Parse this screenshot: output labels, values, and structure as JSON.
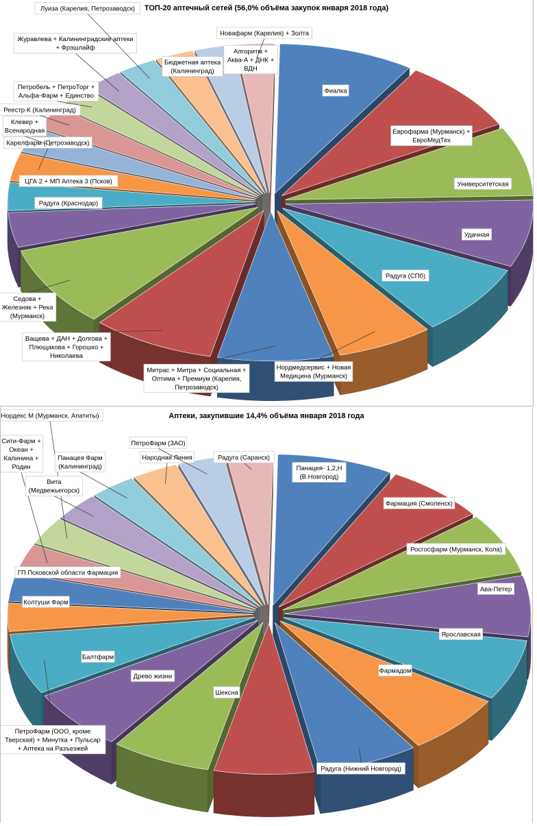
{
  "chart_data": [
    {
      "type": "pie",
      "title": "ТОП-20 аптечный сетей (56,0% объёма закупок января  2018 года)",
      "legend": "none",
      "slices": [
        {
          "label": "Фиалка",
          "value": 7.0,
          "color": "#4f81bd"
        },
        {
          "label": "Еврофарма (Мурманск) + ЕвроМедТех",
          "value": 6.3,
          "color": "#c0504d"
        },
        {
          "label": "Университетская",
          "value": 6.0,
          "color": "#9bbb59"
        },
        {
          "label": "Удачная",
          "value": 5.8,
          "color": "#8064a2"
        },
        {
          "label": "Радуга (СПб)",
          "value": 6.2,
          "color": "#4bacc6"
        },
        {
          "label": "Нордмедсервис + Новая Медицина (Мурманск)",
          "value": 5.0,
          "color": "#f79646"
        },
        {
          "label": "Митрас + Митра + Социальная + Оптима + Премиум (Карелия, Петрозаводск)",
          "value": 6.0,
          "color": "#4f81bd"
        },
        {
          "label": "Ващева + ДАН + Долгова + Плющакова + Горошко + Николаева",
          "value": 6.4,
          "color": "#c0504d"
        },
        {
          "label": "Седова + Железняк + Река (Мурманск)",
          "value": 7.0,
          "color": "#9bbb59"
        },
        {
          "label": "Радуга (Краснодар)",
          "value": 3.0,
          "color": "#8064a2"
        },
        {
          "label": "ЦГА 2 + МП Аптека 3 (Псков)",
          "value": 2.4,
          "color": "#4bacc6"
        },
        {
          "label": "Карелфарм (Петрозаводск)",
          "value": 2.4,
          "color": "#f79646"
        },
        {
          "label": "Клевер + Всенародная",
          "value": 2.1,
          "color": "#95b3d7"
        },
        {
          "label": "Реестр-К (Калининград)",
          "value": 2.0,
          "color": "#d99694"
        },
        {
          "label": "Петробель + ПетроТорг + Альфа-Фарм + Единство",
          "value": 2.0,
          "color": "#c3d69b"
        },
        {
          "label": "Журавлева + Калининградские аптеки + Фрэшлайф",
          "value": 2.0,
          "color": "#b3a2c7"
        },
        {
          "label": "Луиза (Карелия, Петрозаводск)",
          "value": 2.0,
          "color": "#92cddc"
        },
        {
          "label": "Бюджетная аптека (Калининград)",
          "value": 2.0,
          "color": "#fac090"
        },
        {
          "label": "Алгоритм + Аква-А + ДНК + ВДН",
          "value": 2.0,
          "color": "#b9cde5"
        },
        {
          "label": "Новафарм (Карелия) + Золта",
          "value": 2.0,
          "color": "#e6b9b8"
        }
      ]
    },
    {
      "type": "pie",
      "title": "Аптеки, закупившие 14,4% объёма января 2018 года",
      "legend": "none",
      "slices": [
        {
          "label": "Панацея- 1,2,Н (В.Новгород)",
          "value": 7.5,
          "color": "#4f81bd"
        },
        {
          "label": "Фармация (Смоленск)",
          "value": 6.5,
          "color": "#c0504d"
        },
        {
          "label": "Росгосфарм (Мурманск, Кола)",
          "value": 6.5,
          "color": "#9bbb59"
        },
        {
          "label": "Ава-Петер",
          "value": 6.5,
          "color": "#8064a2"
        },
        {
          "label": "Ярославская",
          "value": 6.5,
          "color": "#4bacc6"
        },
        {
          "label": "Фармадом",
          "value": 6.5,
          "color": "#f79646"
        },
        {
          "label": "Радуга (Нижний Новгород)",
          "value": 6.5,
          "color": "#4f81bd"
        },
        {
          "label": "Шексна",
          "value": 6.5,
          "color": "#c0504d"
        },
        {
          "label": "Древо жизни",
          "value": 6.5,
          "color": "#9bbb59"
        },
        {
          "label": "Балтфарм",
          "value": 6.5,
          "color": "#8064a2"
        },
        {
          "label": "ПетроФарм (ООО, кроме Тверская) + Минутка + Пульсар + Аптека на Разъезжей",
          "value": 6.5,
          "color": "#4bacc6"
        },
        {
          "label": "Колтуши Фарм",
          "value": 3.0,
          "color": "#f79646"
        },
        {
          "label": "ГП Псковской области Фармация",
          "value": 3.0,
          "color": "#4f81bd"
        },
        {
          "label": "Сити-Фарм + Океан + Калинина + Родин",
          "value": 3.0,
          "color": "#d99694"
        },
        {
          "label": "Нордекс М (Мурманск, Апатиты)",
          "value": 3.0,
          "color": "#c3d69b"
        },
        {
          "label": "Вита (Медвежьегорск)",
          "value": 3.0,
          "color": "#b3a2c7"
        },
        {
          "label": "Панацея Фарм (Калининград)",
          "value": 3.0,
          "color": "#92cddc"
        },
        {
          "label": "Народная Линия",
          "value": 3.0,
          "color": "#fac090"
        },
        {
          "label": "ПетроФарм (ЗАО)",
          "value": 3.0,
          "color": "#b9cde5"
        },
        {
          "label": "Радуга (Саранск)",
          "value": 3.0,
          "color": "#e6b9b8"
        }
      ]
    }
  ]
}
